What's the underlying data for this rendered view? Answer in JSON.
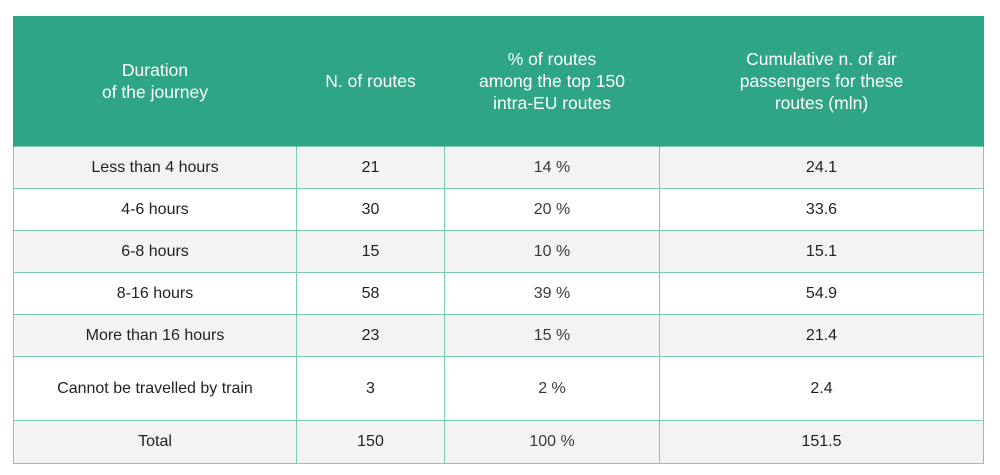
{
  "headers": [
    "Duration\nof the journey",
    "N. of routes",
    "% of routes\namong the top 150\nintra-EU routes",
    "Cumulative n. of air\npassengers for these\nroutes (mln)"
  ],
  "rows": [
    {
      "duration": "Less than 4 hours",
      "routes": "21",
      "pct": "14 %",
      "passengers": "24.1"
    },
    {
      "duration": "4-6 hours",
      "routes": "30",
      "pct": "20 %",
      "passengers": "33.6"
    },
    {
      "duration": "6-8 hours",
      "routes": "15",
      "pct": "10 %",
      "passengers": "15.1"
    },
    {
      "duration": "8-16 hours",
      "routes": "58",
      "pct": "39 %",
      "passengers": "54.9"
    },
    {
      "duration": "More than 16 hours",
      "routes": "23",
      "pct": "15 %",
      "passengers": "21.4"
    },
    {
      "duration": "Cannot be travelled by train",
      "routes": "3",
      "pct": "2 %",
      "passengers": "2.4"
    }
  ],
  "total": {
    "duration": "Total",
    "routes": "150",
    "pct": "100 %",
    "passengers": "151.5"
  },
  "colors": {
    "header_bg": "#2ea584",
    "grid": "#7fcab2",
    "row_alt": "#f3f3f3"
  }
}
